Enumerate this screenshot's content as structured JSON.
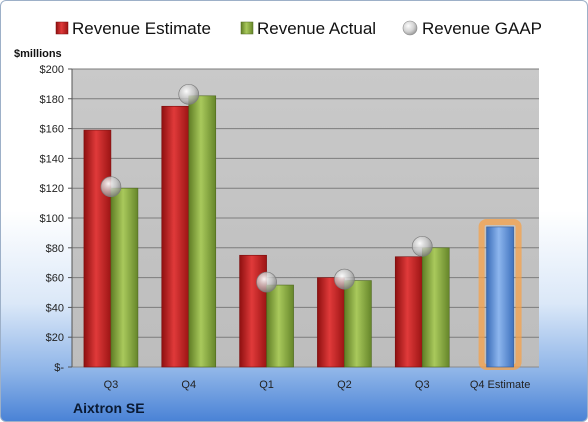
{
  "chart_data": {
    "type": "bar",
    "unit_label": "$millions",
    "company": "Aixtron SE",
    "categories": [
      "Q3",
      "Q4",
      "Q1",
      "Q2",
      "Q3",
      "Q4 Estimate"
    ],
    "series": [
      {
        "name": "Revenue Estimate",
        "kind": "bar",
        "color": "#cc1f1f",
        "values": [
          159,
          175,
          75,
          60,
          74,
          null
        ]
      },
      {
        "name": "Revenue Actual",
        "kind": "bar",
        "color": "#8fb040",
        "values": [
          120,
          182,
          55,
          58,
          80,
          null
        ]
      },
      {
        "name": "Revenue GAAP",
        "kind": "marker",
        "color": "#b8b8b8",
        "values": [
          121,
          183,
          57,
          59,
          81,
          null
        ]
      },
      {
        "name": "Q4 Estimate",
        "kind": "bar",
        "color": "#5b8fd8",
        "highlight": "#f5a14a",
        "values": [
          null,
          null,
          null,
          null,
          null,
          94
        ]
      }
    ],
    "yticks": [
      "$-",
      "$20",
      "$40",
      "$60",
      "$80",
      "$100",
      "$120",
      "$140",
      "$160",
      "$180",
      "$200"
    ],
    "ylim": [
      0,
      200
    ],
    "grid": true,
    "legend_position": "top"
  }
}
